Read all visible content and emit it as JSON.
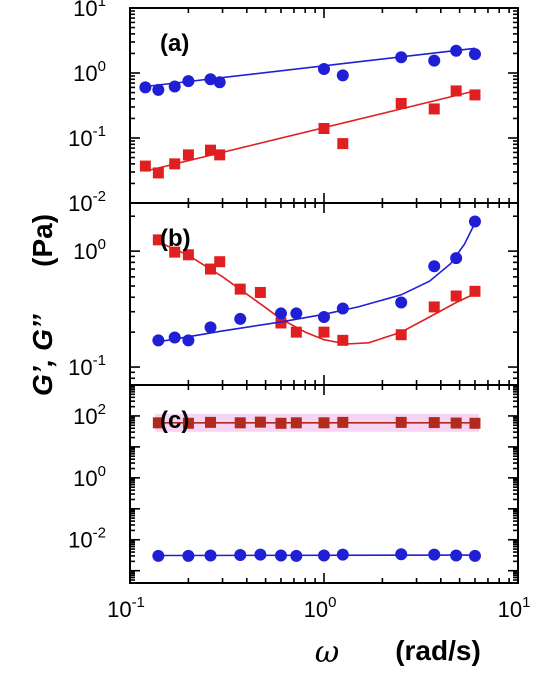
{
  "chart_data": [
    {
      "type": "scatter",
      "panel_label": "(a)",
      "xscale": "log",
      "yscale": "log",
      "xlim": [
        0.1,
        10
      ],
      "ylim": [
        0.01,
        10
      ],
      "yticks": [
        "10-2",
        "10-1",
        "100",
        "101"
      ],
      "series": [
        {
          "marker": "circle",
          "color": "#1f1fd6",
          "x": [
            0.12,
            0.14,
            0.17,
            0.2,
            0.26,
            0.29,
            1.0,
            1.25,
            2.5,
            3.7,
            4.8,
            6.0
          ],
          "y": [
            0.6,
            0.55,
            0.62,
            0.75,
            0.8,
            0.72,
            1.15,
            0.92,
            1.75,
            1.55,
            2.2,
            1.95
          ],
          "fit": {
            "x": [
              0.12,
              6.0
            ],
            "y": [
              0.62,
              2.4
            ]
          }
        },
        {
          "marker": "square",
          "color": "#e02020",
          "x": [
            0.12,
            0.14,
            0.17,
            0.2,
            0.26,
            0.29,
            1.0,
            1.25,
            2.5,
            3.7,
            4.8,
            6.0
          ],
          "y": [
            0.037,
            0.029,
            0.04,
            0.055,
            0.065,
            0.055,
            0.14,
            0.082,
            0.34,
            0.28,
            0.53,
            0.46
          ],
          "fit": {
            "x": [
              0.12,
              6.0
            ],
            "y": [
              0.031,
              0.53
            ]
          }
        }
      ]
    },
    {
      "type": "scatter",
      "panel_label": "(b)",
      "xscale": "log",
      "yscale": "log",
      "xlim": [
        0.1,
        10
      ],
      "ylim": [
        0.07,
        2.6
      ],
      "yticks": [
        "10-1",
        "100"
      ],
      "series": [
        {
          "marker": "square",
          "color": "#e02020",
          "x": [
            0.14,
            0.17,
            0.2,
            0.26,
            0.29,
            0.37,
            0.47,
            0.6,
            0.72,
            1.0,
            1.25,
            2.5,
            3.7,
            4.8,
            6.0
          ],
          "y": [
            1.25,
            0.98,
            0.93,
            0.7,
            0.81,
            0.47,
            0.44,
            0.24,
            0.2,
            0.2,
            0.17,
            0.19,
            0.33,
            0.41,
            0.45
          ],
          "fit": {
            "x": [
              0.14,
              0.2,
              0.3,
              0.45,
              0.6,
              0.8,
              1.0,
              1.3,
              1.7,
              2.5,
              3.5,
              4.8,
              6.0
            ],
            "y": [
              1.2,
              0.92,
              0.6,
              0.37,
              0.26,
              0.2,
              0.172,
              0.158,
              0.162,
              0.2,
              0.27,
              0.36,
              0.43
            ]
          }
        },
        {
          "marker": "circle",
          "color": "#1f1fd6",
          "x": [
            0.14,
            0.17,
            0.2,
            0.26,
            0.37,
            0.6,
            0.72,
            1.0,
            1.25,
            2.5,
            3.7,
            4.8,
            6.0
          ],
          "y": [
            0.17,
            0.18,
            0.17,
            0.22,
            0.26,
            0.29,
            0.29,
            0.27,
            0.32,
            0.36,
            0.74,
            0.87,
            1.8
          ],
          "fit": {
            "x": [
              0.14,
              0.3,
              0.6,
              1.0,
              1.5,
              2.5,
              3.5,
              4.5,
              5.3,
              6.0
            ],
            "y": [
              0.165,
              0.205,
              0.245,
              0.285,
              0.33,
              0.42,
              0.55,
              0.78,
              1.15,
              1.75
            ]
          }
        }
      ]
    },
    {
      "type": "scatter",
      "panel_label": "(c)",
      "xscale": "log",
      "yscale": "log",
      "xlim": [
        0.1,
        10
      ],
      "ylim": [
        0.0004,
        1000
      ],
      "yticks": [
        "10-2",
        "100",
        "102"
      ],
      "xticks": [
        "10-1",
        "100",
        "101"
      ],
      "series": [
        {
          "marker": "square",
          "color": "#b02a1e",
          "x": [
            0.14,
            0.2,
            0.26,
            0.37,
            0.47,
            0.6,
            0.72,
            1.0,
            1.25,
            2.5,
            3.7,
            4.8,
            6.0
          ],
          "y": [
            60,
            58,
            62,
            60,
            63,
            58,
            60,
            60,
            62,
            62,
            61,
            59,
            58
          ],
          "fit": {
            "x": [
              0.14,
              6.0
            ],
            "y": [
              60,
              60
            ]
          }
        },
        {
          "marker": "circle",
          "color": "#1f1fd6",
          "x": [
            0.14,
            0.2,
            0.26,
            0.37,
            0.47,
            0.6,
            0.72,
            1.0,
            1.25,
            2.5,
            3.7,
            4.8,
            6.0
          ],
          "y": [
            0.003,
            0.003,
            0.0031,
            0.0032,
            0.0033,
            0.0031,
            0.003,
            0.0031,
            0.0033,
            0.0034,
            0.0033,
            0.0031,
            0.003
          ],
          "fit": {
            "x": [
              0.14,
              6.0
            ],
            "y": [
              0.0031,
              0.0032
            ]
          }
        }
      ]
    }
  ],
  "ylabel": {
    "part1": "G’, G’’",
    "part2": "(Pa)"
  },
  "xlabel": {
    "symbol": "ω",
    "unit": "(rad/s)"
  },
  "colors": {
    "circle": "#1f1fd6",
    "square": "#e02020",
    "square_c": "#b02a1e",
    "highlight": "#f6c6f0"
  }
}
